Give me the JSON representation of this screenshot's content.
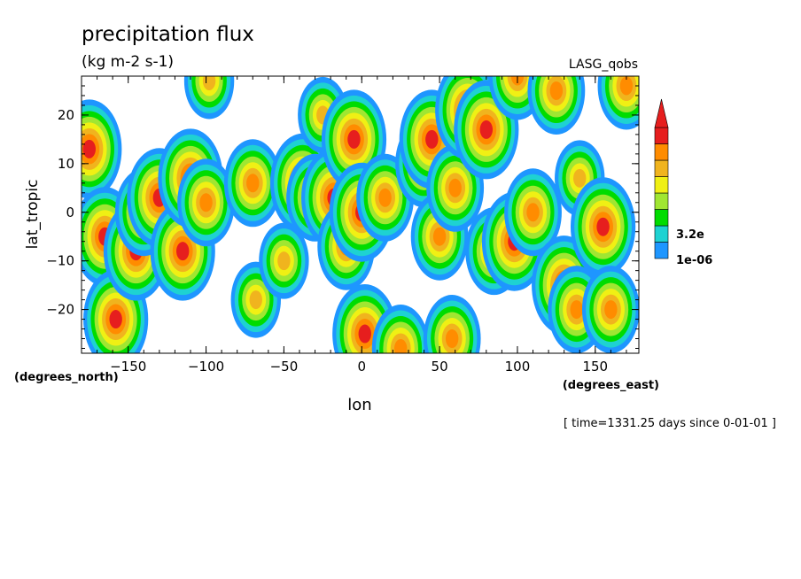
{
  "chart_data": {
    "type": "heatmap",
    "title": "precipitation flux",
    "subtitle": "(kg m-2 s-1)",
    "dataset_label": "LASG_qobs",
    "xlabel": "lon",
    "ylabel": "lat_tropic",
    "xunits": "(degrees_east)",
    "yunits": "(degrees_north)",
    "time_label": "[ time=1331.25 days since 0-01-01 ]",
    "xlim": [
      -180,
      178
    ],
    "ylim": [
      -29,
      28
    ],
    "xticks": [
      -150,
      -100,
      -50,
      0,
      50,
      100,
      150
    ],
    "yticks": [
      -20,
      -10,
      0,
      10,
      20
    ],
    "grid": false,
    "colorbar": {
      "placement": "right",
      "labels": [
        "3.2e",
        "1e-06"
      ],
      "colors": [
        "#1e96ff",
        "#1ed2d2",
        "#00dc00",
        "#a0e632",
        "#f0f014",
        "#f0b41e",
        "#ff8c00",
        "#e61e1e"
      ]
    },
    "contour_levels": [
      "#1e96ff",
      "#1ed2d2",
      "#00dc00",
      "#a0e632",
      "#f0f014",
      "#f0b41e",
      "#ff8c00",
      "#e61e1e"
    ],
    "cells": [
      {
        "lon": -175,
        "lat": 13,
        "level": 8
      },
      {
        "lon": -165,
        "lat": -5,
        "level": 8
      },
      {
        "lon": -158,
        "lat": -22,
        "level": 8
      },
      {
        "lon": -145,
        "lat": -8,
        "level": 8
      },
      {
        "lon": -140,
        "lat": 0,
        "level": 7
      },
      {
        "lon": -130,
        "lat": 3,
        "level": 8
      },
      {
        "lon": -115,
        "lat": -8,
        "level": 8
      },
      {
        "lon": -110,
        "lat": 7,
        "level": 8
      },
      {
        "lon": -100,
        "lat": 2,
        "level": 7
      },
      {
        "lon": -98,
        "lat": 27,
        "level": 6
      },
      {
        "lon": -70,
        "lat": 6,
        "level": 7
      },
      {
        "lon": -68,
        "lat": -18,
        "level": 6
      },
      {
        "lon": -50,
        "lat": -10,
        "level": 6
      },
      {
        "lon": -38,
        "lat": 6,
        "level": 8
      },
      {
        "lon": -30,
        "lat": 3,
        "level": 7
      },
      {
        "lon": -25,
        "lat": 20,
        "level": 6
      },
      {
        "lon": -18,
        "lat": 3,
        "level": 8
      },
      {
        "lon": -10,
        "lat": -7,
        "level": 7
      },
      {
        "lon": -5,
        "lat": 15,
        "level": 8
      },
      {
        "lon": 0,
        "lat": 0,
        "level": 8
      },
      {
        "lon": 2,
        "lat": -25,
        "level": 8
      },
      {
        "lon": 15,
        "lat": 3,
        "level": 7
      },
      {
        "lon": 25,
        "lat": -28,
        "level": 7
      },
      {
        "lon": 40,
        "lat": 10,
        "level": 7
      },
      {
        "lon": 45,
        "lat": 15,
        "level": 8
      },
      {
        "lon": 50,
        "lat": -5,
        "level": 7
      },
      {
        "lon": 58,
        "lat": -26,
        "level": 7
      },
      {
        "lon": 60,
        "lat": 5,
        "level": 7
      },
      {
        "lon": 68,
        "lat": 21,
        "level": 8
      },
      {
        "lon": 80,
        "lat": 17,
        "level": 8
      },
      {
        "lon": 85,
        "lat": -8,
        "level": 7
      },
      {
        "lon": 98,
        "lat": -6,
        "level": 8
      },
      {
        "lon": 100,
        "lat": 28,
        "level": 7
      },
      {
        "lon": 110,
        "lat": 0,
        "level": 7
      },
      {
        "lon": 125,
        "lat": 25,
        "level": 7
      },
      {
        "lon": 130,
        "lat": -15,
        "level": 8
      },
      {
        "lon": 138,
        "lat": -20,
        "level": 7
      },
      {
        "lon": 140,
        "lat": 7,
        "level": 6
      },
      {
        "lon": 155,
        "lat": -3,
        "level": 8
      },
      {
        "lon": 160,
        "lat": -20,
        "level": 7
      },
      {
        "lon": 170,
        "lat": 26,
        "level": 7
      }
    ]
  }
}
